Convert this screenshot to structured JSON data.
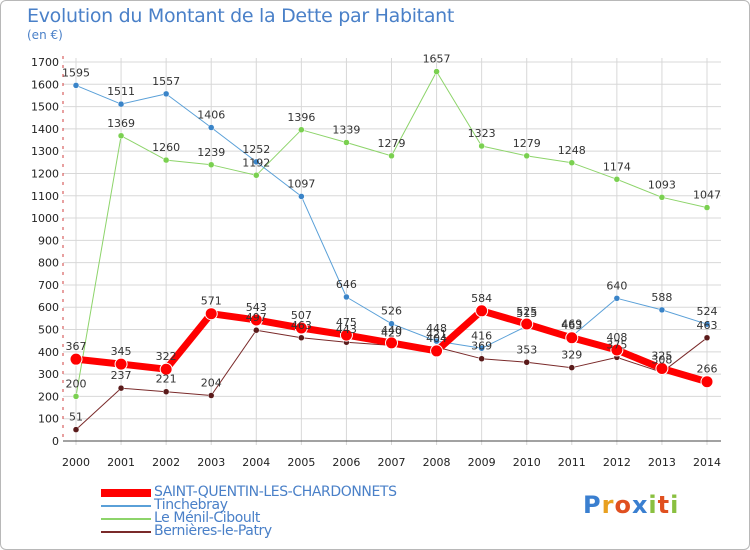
{
  "title": "Evolution du Montant de la Dette par Habitant",
  "subtitle": "(en €)",
  "brand": {
    "letters": [
      "P",
      "r",
      "o",
      "x",
      "i",
      "t",
      "i"
    ],
    "colors": [
      "#3a7fd0",
      "#e8a020",
      "#e05020",
      "#3a7fd0",
      "#8ac040",
      "#e05020",
      "#8ac040"
    ]
  },
  "chart_data": {
    "type": "line",
    "title": "Evolution du Montant de la Dette par Habitant",
    "ylabel": "(en €)",
    "xlabel": "",
    "categories": [
      "2000",
      "2001",
      "2002",
      "2003",
      "2004",
      "2005",
      "2006",
      "2007",
      "2008",
      "2009",
      "2010",
      "2011",
      "2012",
      "2013",
      "2014"
    ],
    "ylim": [
      0,
      1700
    ],
    "yticks": [
      "0",
      "100",
      "200",
      "300",
      "400",
      "500",
      "600",
      "700",
      "800",
      "900",
      "1000",
      "1100",
      "1200",
      "1300",
      "1400",
      "1500",
      "1600",
      "1700"
    ],
    "series": [
      {
        "name": "Bernières-le-Patry",
        "color": "#7a2a2a",
        "marker": "#5a1a1a",
        "width": 1,
        "r": 3,
        "values": [
          51,
          237,
          221,
          204,
          497,
          463,
          443,
          429,
          421,
          369,
          353,
          329,
          375,
          308,
          463
        ],
        "labels": [
          "51",
          "237",
          "221",
          "204",
          "497",
          "463",
          "443",
          "429",
          "421",
          "369",
          "353",
          "329",
          "375",
          "308",
          "463"
        ]
      },
      {
        "name": "Le Ménil-Ciboult",
        "color": "#8dd46a",
        "marker": "#7ad050",
        "width": 1,
        "r": 3,
        "values": [
          200,
          1369,
          1260,
          1239,
          1192,
          1396,
          1339,
          1279,
          1657,
          1323,
          1279,
          1248,
          1174,
          1093,
          1047
        ],
        "labels": [
          "200",
          "1369",
          "1260",
          "1239",
          "1192",
          "1396",
          "1339",
          "1279",
          "1657",
          "1323",
          "1279",
          "1248",
          "1174",
          "1093",
          "1047"
        ]
      },
      {
        "name": "Tinchebray",
        "color": "#5aa0d8",
        "marker": "#3a84c8",
        "width": 1,
        "r": 3,
        "values": [
          1595,
          1511,
          1557,
          1406,
          1252,
          1097,
          646,
          526,
          448,
          416,
          515,
          469,
          640,
          588,
          524
        ],
        "labels": [
          "1595",
          "1511",
          "1557",
          "1406",
          "1252",
          "1097",
          "646",
          "526",
          "448",
          "416",
          "515",
          "469",
          "640",
          "588",
          "524"
        ]
      },
      {
        "name": "SAINT-QUENTIN-LES-CHARDONNETS",
        "color": "#ff0000",
        "marker": "#ff0000",
        "width": 7,
        "r": 6,
        "values": [
          367,
          345,
          322,
          571,
          543,
          507,
          475,
          440,
          404,
          584,
          525,
          463,
          408,
          325,
          266
        ],
        "labels": [
          "367",
          "345",
          "322",
          "571",
          "543",
          "507",
          "475",
          "440",
          "404",
          "584",
          "525",
          "463",
          "408",
          "325",
          "266"
        ]
      }
    ]
  },
  "legend": [
    {
      "label": "SAINT-QUENTIN-LES-CHARDONNETS",
      "color": "#ff0000",
      "thick": true
    },
    {
      "label": "Tinchebray",
      "color": "#5aa0d8",
      "thick": false
    },
    {
      "label": "Le Ménil-Ciboult",
      "color": "#8dd46a",
      "thick": false
    },
    {
      "label": "Bernières-le-Patry",
      "color": "#7a2a2a",
      "thick": false
    }
  ]
}
